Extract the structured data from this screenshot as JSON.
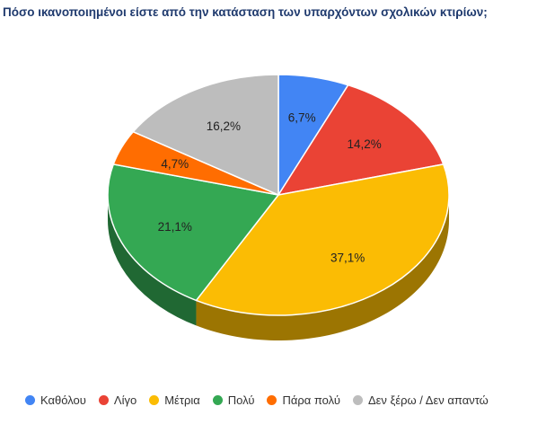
{
  "chart_data": {
    "type": "pie",
    "title": "Πόσο ικανοποιημένοι είστε από την κατάσταση των υπαρχόντων σχολικών κτιρίων;",
    "categories": [
      "Καθόλου",
      "Λίγο",
      "Μέτρια",
      "Πολύ",
      "Πάρα πολύ",
      "Δεν ξέρω / Δεν απαντώ"
    ],
    "values": [
      6.7,
      14.2,
      37.1,
      21.1,
      4.7,
      16.2
    ],
    "labels": [
      "6,7%",
      "14,2%",
      "37,1%",
      "21,1%",
      "4,7%",
      "16,2%"
    ],
    "colors": [
      "#4285f4",
      "#ea4335",
      "#fbbc04",
      "#34a853",
      "#ff6d01",
      "#bdbdbd"
    ],
    "legend_position": "bottom"
  }
}
